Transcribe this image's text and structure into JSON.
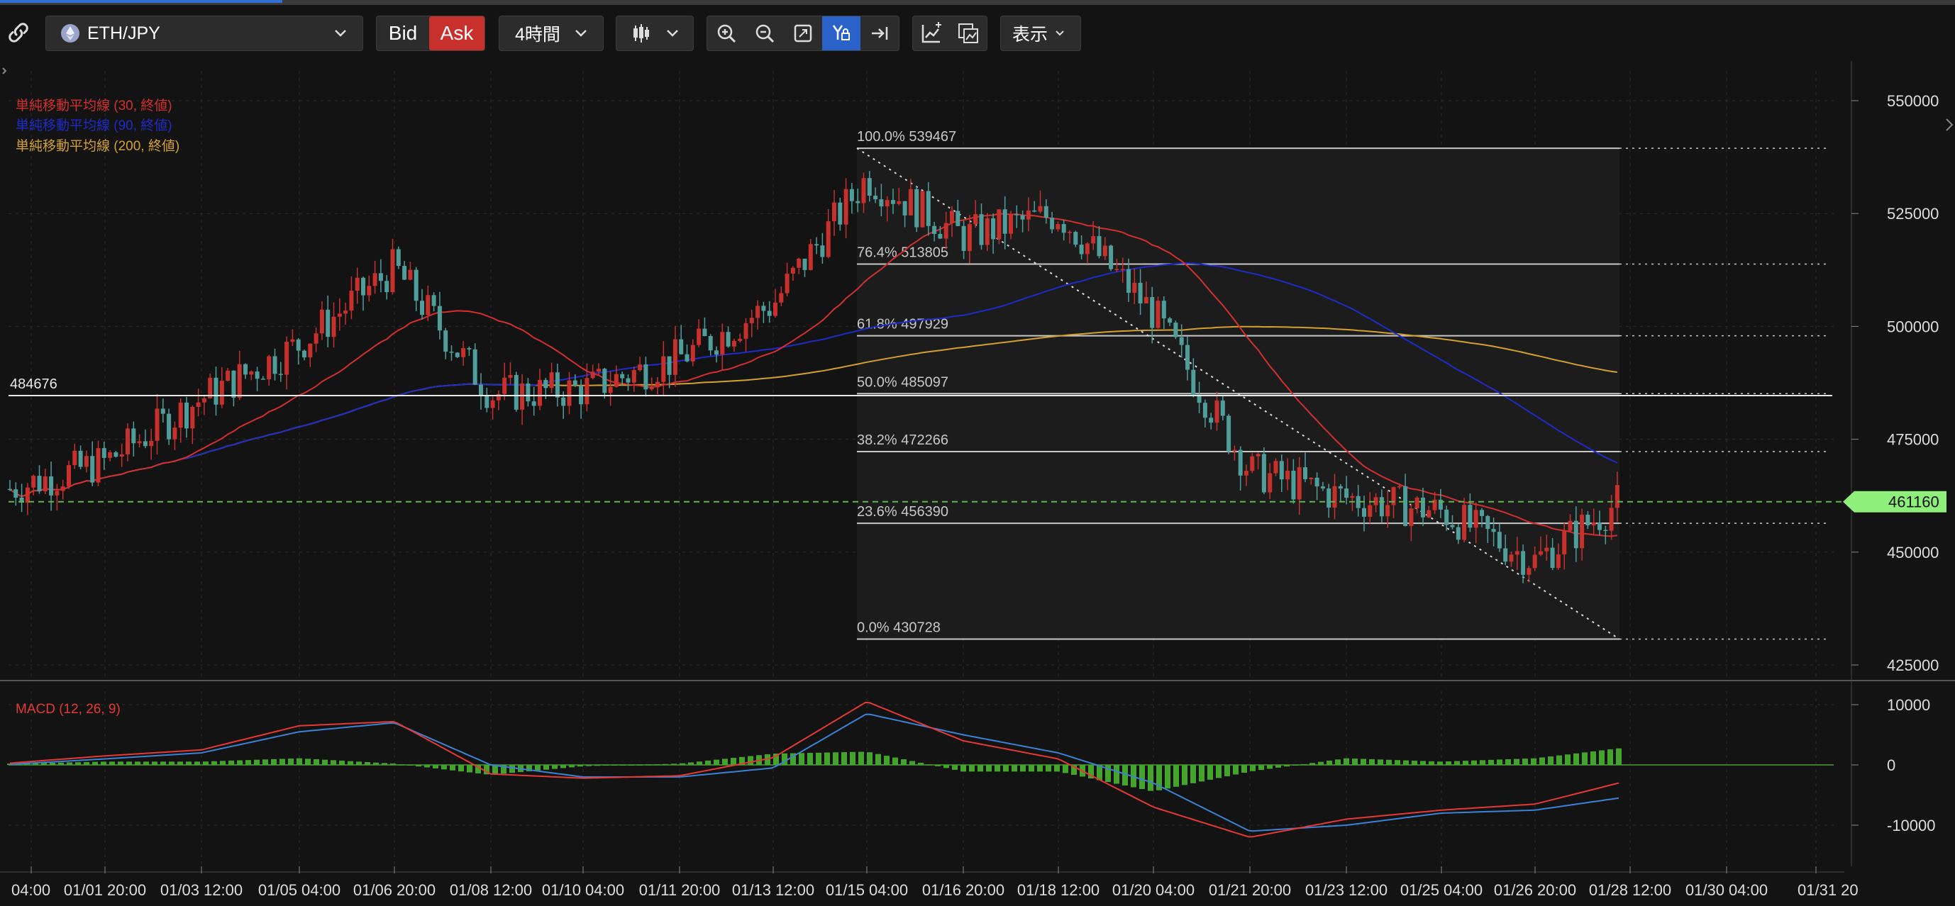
{
  "toolbar": {
    "symbol": "ETH/JPY",
    "bid_label": "Bid",
    "ask_label": "Ask",
    "timeframe": "4時間",
    "display_label": "表示"
  },
  "indicators": {
    "sma30": "単純移動平均線 (30, 終値)",
    "sma90": "単純移動平均線 (90, 終値)",
    "sma200": "単純移動平均線 (200, 終値)",
    "macd": "MACD (12, 26, 9)"
  },
  "price_axis": [
    "550000",
    "525000",
    "500000",
    "475000",
    "450000",
    "425000"
  ],
  "macd_axis": [
    "10000",
    "0",
    "-10000"
  ],
  "time_axis": [
    "04:00",
    "01/01 20:00",
    "01/03 12:00",
    "01/05 04:00",
    "01/06 20:00",
    "01/08 12:00",
    "01/10 04:00",
    "01/11 20:00",
    "01/13 12:00",
    "01/15 04:00",
    "01/16 20:00",
    "01/18 12:00",
    "01/20 04:00",
    "01/21 20:00",
    "01/23 12:00",
    "01/25 04:00",
    "01/26 20:00",
    "01/28 12:00",
    "01/30 04:00",
    "01/31 20"
  ],
  "horizontal_line": "484676",
  "current_price": "461160",
  "fibonacci": [
    {
      "label": "100.0% 539467",
      "price": 539467
    },
    {
      "label": "76.4% 513805",
      "price": 513805
    },
    {
      "label": "61.8% 497929",
      "price": 497929
    },
    {
      "label": "50.0% 485097",
      "price": 485097
    },
    {
      "label": "38.2% 472266",
      "price": 472266
    },
    {
      "label": "23.6% 456390",
      "price": 456390
    },
    {
      "label": "0.0% 430728",
      "price": 430728
    }
  ],
  "colors": {
    "background": "#131313",
    "up_candle": "#c8302c",
    "down_candle": "#4f9e9b",
    "sma30": "#d32f2f",
    "sma90": "#1e2bc8",
    "sma200": "#d4a030",
    "macd_line": "#e53935",
    "signal_line": "#3b82d6",
    "histogram": "#43a32c",
    "current_price": "#8ef07a",
    "ask_button": "#c8302c",
    "active_tool": "#2a62c9"
  },
  "chart_data": {
    "type": "candlestick",
    "yaxis_ticks": [
      550000,
      525000,
      500000,
      475000,
      450000,
      425000
    ],
    "ylim": [
      420000,
      552000
    ],
    "x": [
      "12/31 04:00",
      "01/01 20:00",
      "01/03 12:00",
      "01/05 04:00",
      "01/06 20:00",
      "01/08 12:00",
      "01/10 04:00",
      "01/11 20:00",
      "01/13 12:00",
      "01/15 04:00",
      "01/16 20:00",
      "01/18 12:00",
      "01/20 04:00",
      "01/21 20:00",
      "01/23 12:00",
      "01/25 04:00",
      "01/26 20:00",
      "01/28 08:00"
    ],
    "close": [
      464000,
      470000,
      484000,
      496000,
      513000,
      485000,
      486000,
      493000,
      505000,
      533000,
      520000,
      525000,
      503000,
      468000,
      462000,
      459000,
      448000,
      461160
    ],
    "macd": [
      300,
      1500,
      2500,
      6500,
      7200,
      -1500,
      -2200,
      -1800,
      1200,
      10500,
      4000,
      1000,
      -7000,
      -12000,
      -9000,
      -7500,
      -6500,
      -3000
    ],
    "signal": [
      100,
      1000,
      2000,
      5500,
      7000,
      0,
      -2000,
      -2000,
      -500,
      8500,
      5000,
      2000,
      -3000,
      -11000,
      -10000,
      -8000,
      -7500,
      -5500
    ]
  }
}
